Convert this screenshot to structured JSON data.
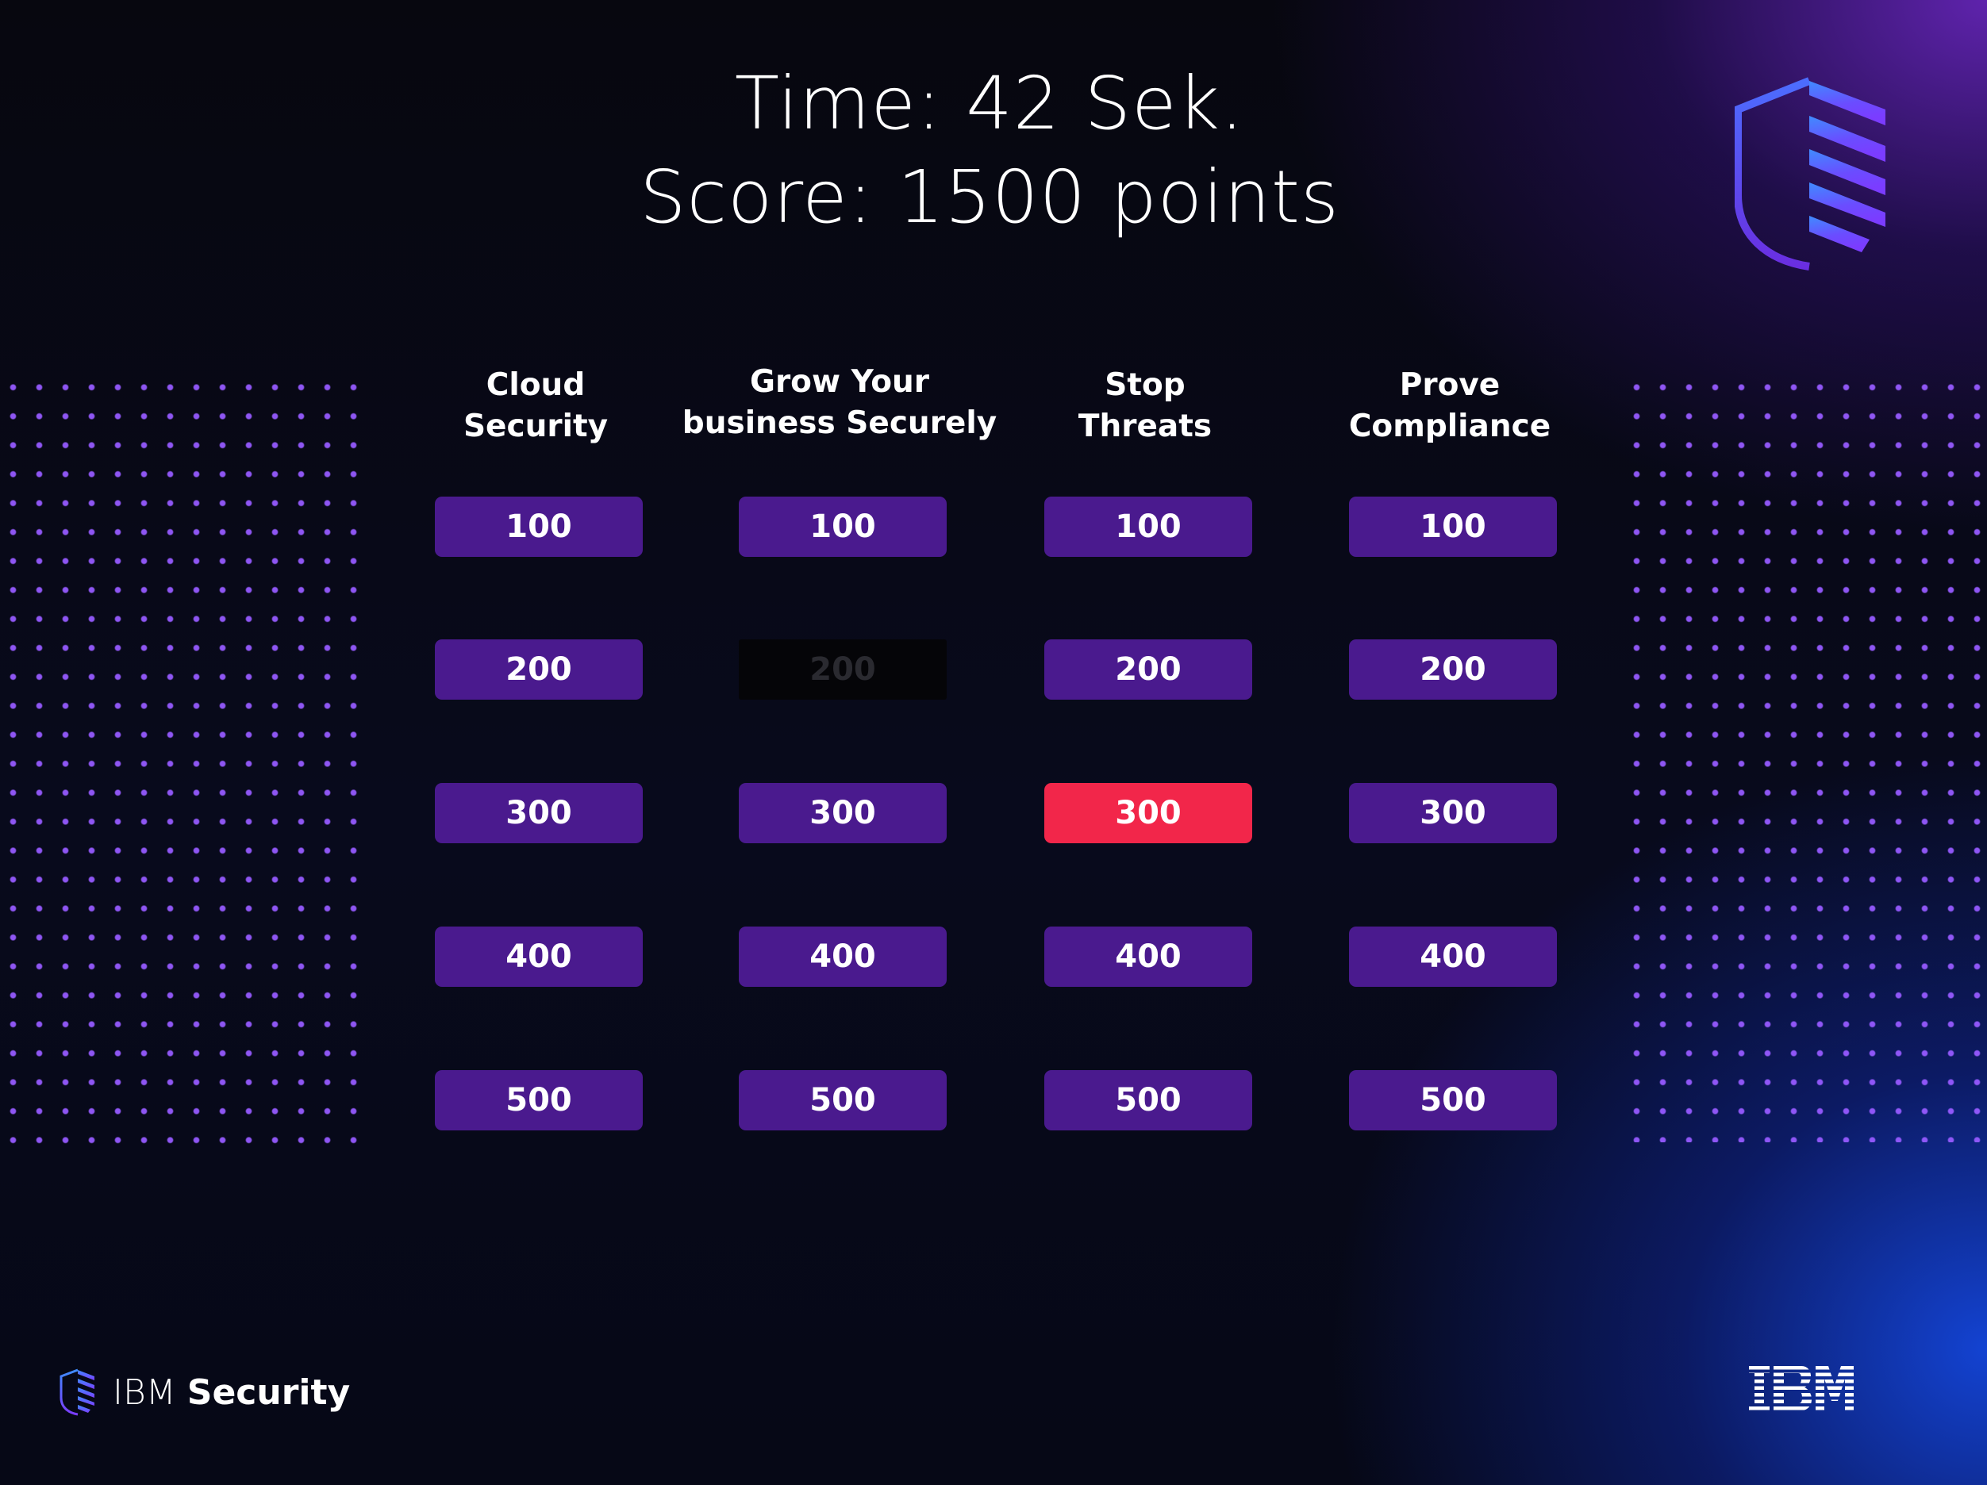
{
  "header": {
    "time_text": "Time: 42 Sek.",
    "score_text": "Score: 1500 points"
  },
  "board": {
    "columns": [
      {
        "title": "Cloud\nSecurity",
        "tiles": [
          {
            "label": "100",
            "state": "available"
          },
          {
            "label": "200",
            "state": "available"
          },
          {
            "label": "300",
            "state": "available"
          },
          {
            "label": "400",
            "state": "available"
          },
          {
            "label": "500",
            "state": "available"
          }
        ]
      },
      {
        "title": "Grow Your\nbusiness Securely",
        "tiles": [
          {
            "label": "100",
            "state": "available"
          },
          {
            "label": "200",
            "state": "used"
          },
          {
            "label": "300",
            "state": "available"
          },
          {
            "label": "400",
            "state": "available"
          },
          {
            "label": "500",
            "state": "available"
          }
        ]
      },
      {
        "title": "Stop\nThreats",
        "tiles": [
          {
            "label": "100",
            "state": "available"
          },
          {
            "label": "200",
            "state": "available"
          },
          {
            "label": "300",
            "state": "active"
          },
          {
            "label": "400",
            "state": "available"
          },
          {
            "label": "500",
            "state": "available"
          }
        ]
      },
      {
        "title": "Prove\nCompliance",
        "tiles": [
          {
            "label": "100",
            "state": "available"
          },
          {
            "label": "200",
            "state": "available"
          },
          {
            "label": "300",
            "state": "available"
          },
          {
            "label": "400",
            "state": "available"
          },
          {
            "label": "500",
            "state": "available"
          }
        ]
      }
    ]
  },
  "footer": {
    "brand_ibm": "IBM",
    "brand_security": "Security",
    "logo_text": "IBM"
  },
  "icons": {
    "top_right": "shield-icon",
    "footer_left": "shield-icon",
    "footer_right": "ibm-logo"
  },
  "colors": {
    "tile": "#4a1a8e",
    "tile_active": "#f2264a",
    "tile_used": "#050508",
    "dots": "#9650ff",
    "accent_blue": "#1446dc"
  }
}
